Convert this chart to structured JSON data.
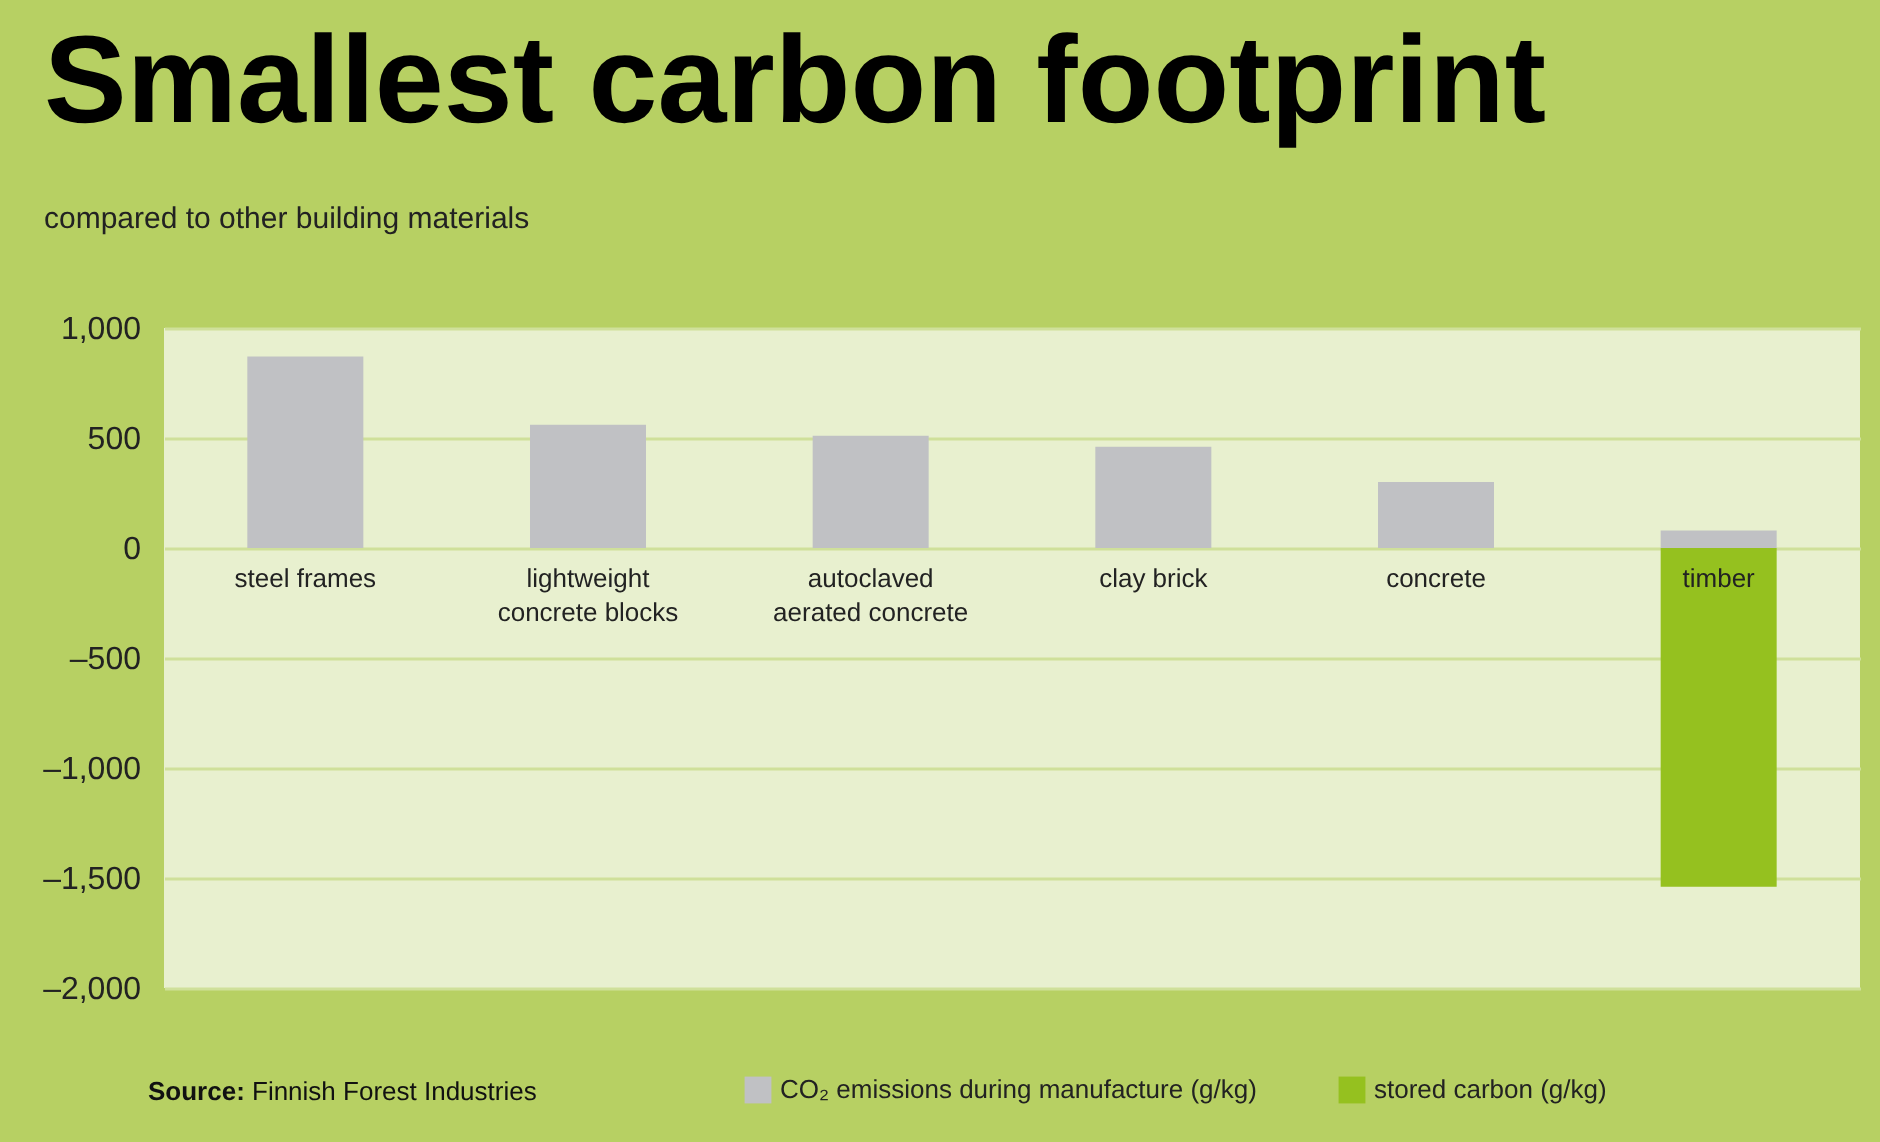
{
  "chart_data": {
    "type": "bar",
    "title": "Smallest carbon footprint",
    "subtitle": "compared to other building materials",
    "categories": [
      "steel frames",
      "lightweight concrete blocks",
      "autoclaved aerated concrete",
      "clay brick",
      "concrete",
      "timber"
    ],
    "stacked": true,
    "series": [
      {
        "name": "CO₂ emissions during manufacture (g/kg)",
        "color": "#c0c1c4",
        "values": [
          870,
          560,
          510,
          460,
          300,
          80
        ]
      },
      {
        "name": "stored carbon (g/kg)",
        "color": "#95c11f",
        "values": [
          null,
          null,
          null,
          null,
          null,
          -1540
        ]
      }
    ],
    "ylim": [
      -2000,
      1000
    ],
    "yticks": [
      {
        "value": 1000,
        "label": "1,000"
      },
      500,
      0,
      {
        "value": -500,
        "label": "–500"
      },
      {
        "value": -1000,
        "label": "–1,000"
      },
      {
        "value": -1500,
        "label": "–1,500"
      },
      {
        "value": -2000,
        "label": "–2,000"
      }
    ],
    "grid": "y",
    "legend": "bottom",
    "annotations": [
      "Source: Finnish Forest Industries"
    ]
  }
}
